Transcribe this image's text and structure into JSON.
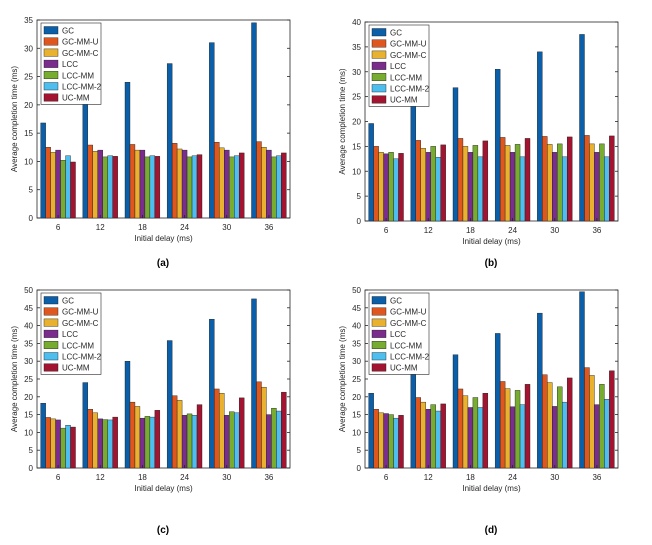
{
  "colors": {
    "series": [
      "#0a5fa8",
      "#e0561f",
      "#e8b230",
      "#7b2d8e",
      "#77ac30",
      "#4dbeee",
      "#a2142f"
    ]
  },
  "chart_data": [
    {
      "type": "bar",
      "caption": "(a)",
      "xlabel": "Initial delay (ms)",
      "ylabel": "Average completion time (ms)",
      "categories": [
        "6",
        "12",
        "18",
        "24",
        "30",
        "36"
      ],
      "ylim": [
        0,
        35
      ],
      "yticks": [
        0,
        5,
        10,
        15,
        20,
        25,
        30,
        35
      ],
      "grid": false,
      "legend": "top-left",
      "series": [
        {
          "name": "GC",
          "values": [
            16.8,
            20.5,
            24.0,
            27.3,
            31.0,
            34.5
          ]
        },
        {
          "name": "GC-MM-U",
          "values": [
            12.5,
            12.9,
            13.0,
            13.2,
            13.4,
            13.5
          ]
        },
        {
          "name": "GC-MM-C",
          "values": [
            11.6,
            11.8,
            12.0,
            12.2,
            12.4,
            12.5
          ]
        },
        {
          "name": "LCC",
          "values": [
            12.0,
            12.0,
            12.0,
            12.0,
            12.0,
            12.0
          ]
        },
        {
          "name": "LCC-MM",
          "values": [
            10.2,
            10.8,
            10.8,
            10.8,
            10.8,
            10.8
          ]
        },
        {
          "name": "LCC-MM-2",
          "values": [
            11.0,
            11.0,
            11.0,
            11.0,
            11.0,
            11.0
          ]
        },
        {
          "name": "UC-MM",
          "values": [
            9.9,
            10.9,
            10.9,
            11.2,
            11.5,
            11.5
          ]
        }
      ]
    },
    {
      "type": "bar",
      "caption": "(b)",
      "xlabel": "Initial delay (ms)",
      "ylabel": "Average completion time (ms)",
      "categories": [
        "6",
        "12",
        "18",
        "24",
        "30",
        "36"
      ],
      "ylim": [
        0,
        40
      ],
      "yticks": [
        0,
        5,
        10,
        15,
        20,
        25,
        30,
        35,
        40
      ],
      "grid": false,
      "legend": "top-left",
      "series": [
        {
          "name": "GC",
          "values": [
            19.6,
            23.1,
            26.8,
            30.5,
            34.0,
            37.5
          ]
        },
        {
          "name": "GC-MM-U",
          "values": [
            15.0,
            16.2,
            16.6,
            16.8,
            17.0,
            17.2
          ]
        },
        {
          "name": "GC-MM-C",
          "values": [
            13.8,
            14.6,
            15.0,
            15.2,
            15.4,
            15.5
          ]
        },
        {
          "name": "LCC",
          "values": [
            13.5,
            13.8,
            13.8,
            13.8,
            13.8,
            13.8
          ]
        },
        {
          "name": "LCC-MM",
          "values": [
            13.8,
            15.0,
            15.2,
            15.4,
            15.5,
            15.5
          ]
        },
        {
          "name": "LCC-MM-2",
          "values": [
            12.5,
            12.8,
            12.9,
            12.9,
            12.9,
            12.9
          ]
        },
        {
          "name": "UC-MM",
          "values": [
            13.6,
            15.3,
            16.1,
            16.6,
            16.9,
            17.1
          ]
        }
      ]
    },
    {
      "type": "bar",
      "caption": "(c)",
      "xlabel": "Initial delay (ms)",
      "ylabel": "Average completion time (ms)",
      "categories": [
        "6",
        "12",
        "18",
        "24",
        "30",
        "36"
      ],
      "ylim": [
        0,
        50
      ],
      "yticks": [
        0,
        5,
        10,
        15,
        20,
        25,
        30,
        35,
        40,
        45,
        50
      ],
      "grid": false,
      "legend": "top-left",
      "series": [
        {
          "name": "GC",
          "values": [
            18.2,
            24.0,
            30.0,
            35.8,
            41.8,
            47.5
          ]
        },
        {
          "name": "GC-MM-U",
          "values": [
            14.2,
            16.5,
            18.5,
            20.3,
            22.2,
            24.2
          ]
        },
        {
          "name": "GC-MM-C",
          "values": [
            13.8,
            15.5,
            17.3,
            19.0,
            21.0,
            22.7
          ]
        },
        {
          "name": "LCC",
          "values": [
            13.5,
            13.8,
            14.0,
            14.8,
            14.8,
            15.0
          ]
        },
        {
          "name": "LCC-MM",
          "values": [
            11.2,
            13.6,
            14.5,
            15.2,
            15.8,
            16.8
          ]
        },
        {
          "name": "LCC-MM-2",
          "values": [
            12.0,
            13.5,
            14.3,
            14.8,
            15.5,
            16.0
          ]
        },
        {
          "name": "UC-MM",
          "values": [
            11.5,
            14.3,
            16.2,
            17.8,
            19.7,
            21.3
          ]
        }
      ]
    },
    {
      "type": "bar",
      "caption": "(d)",
      "xlabel": "Initial delay (ms)",
      "ylabel": "Average completion time (ms)",
      "categories": [
        "6",
        "12",
        "18",
        "24",
        "30",
        "36"
      ],
      "ylim": [
        0,
        50
      ],
      "yticks": [
        0,
        5,
        10,
        15,
        20,
        25,
        30,
        35,
        40,
        45,
        50
      ],
      "grid": false,
      "legend": "top-left",
      "series": [
        {
          "name": "GC",
          "values": [
            21.0,
            26.2,
            31.8,
            37.8,
            43.5,
            49.5
          ]
        },
        {
          "name": "GC-MM-U",
          "values": [
            16.5,
            19.8,
            22.2,
            24.3,
            26.2,
            28.2
          ]
        },
        {
          "name": "GC-MM-C",
          "values": [
            15.5,
            18.5,
            20.3,
            22.3,
            24.0,
            26.0
          ]
        },
        {
          "name": "LCC",
          "values": [
            15.3,
            16.5,
            17.0,
            17.2,
            17.3,
            17.8
          ]
        },
        {
          "name": "LCC-MM",
          "values": [
            15.0,
            17.8,
            19.8,
            21.8,
            22.8,
            23.5
          ]
        },
        {
          "name": "LCC-MM-2",
          "values": [
            14.0,
            16.0,
            17.0,
            17.8,
            18.5,
            19.3
          ]
        },
        {
          "name": "UC-MM",
          "values": [
            14.8,
            18.0,
            21.0,
            23.5,
            25.3,
            27.3
          ]
        }
      ]
    }
  ]
}
